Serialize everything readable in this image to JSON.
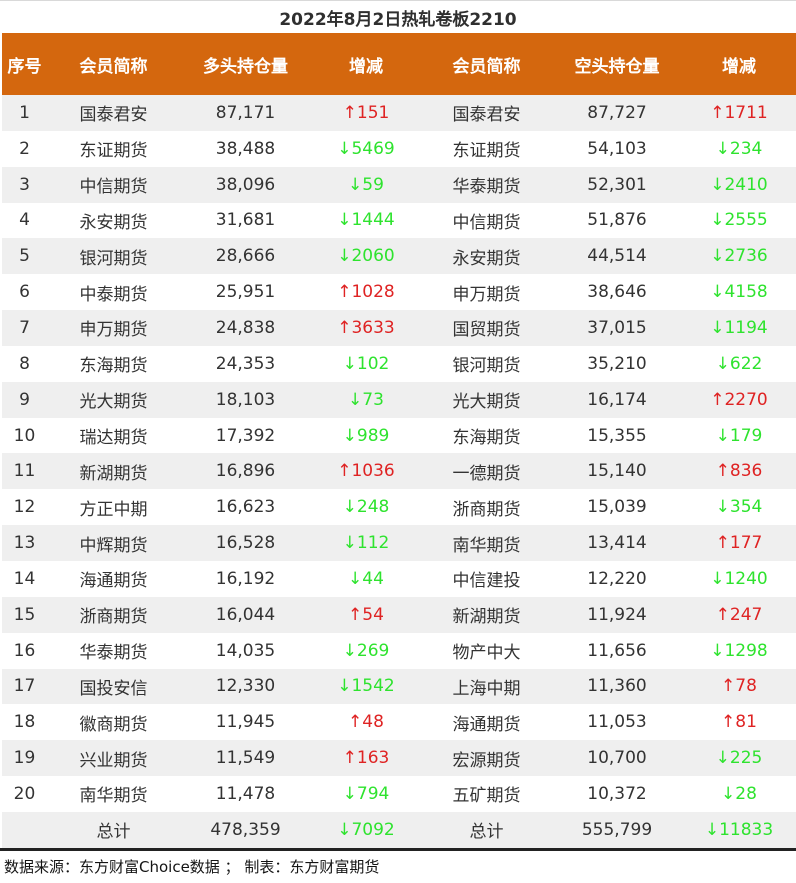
{
  "title": "2022年8月2日热轧卷板2210",
  "footer": "数据来源：东方财富Choice数据 ； 制表：东方财富期货",
  "colors": {
    "header_bg": "#D4670E",
    "alt_row_bg": "#EFEFEF",
    "up": "#DF2323",
    "down": "#2EE32E"
  },
  "arrows": {
    "up": "↑",
    "down": "↓"
  },
  "table": {
    "headers": [
      "序号",
      "会员简称",
      "多头持仓量",
      "增减",
      "会员简称",
      "空头持仓量",
      "增减"
    ],
    "rows": [
      {
        "no": "1",
        "lname": "国泰君安",
        "lpos": "87,171",
        "lchg": "151",
        "ldir": "up",
        "sname": "国泰君安",
        "spos": "87,727",
        "schg": "1711",
        "sdir": "up"
      },
      {
        "no": "2",
        "lname": "东证期货",
        "lpos": "38,488",
        "lchg": "5469",
        "ldir": "down",
        "sname": "东证期货",
        "spos": "54,103",
        "schg": "234",
        "sdir": "down"
      },
      {
        "no": "3",
        "lname": "中信期货",
        "lpos": "38,096",
        "lchg": "59",
        "ldir": "down",
        "sname": "华泰期货",
        "spos": "52,301",
        "schg": "2410",
        "sdir": "down"
      },
      {
        "no": "4",
        "lname": "永安期货",
        "lpos": "31,681",
        "lchg": "1444",
        "ldir": "down",
        "sname": "中信期货",
        "spos": "51,876",
        "schg": "2555",
        "sdir": "down"
      },
      {
        "no": "5",
        "lname": "银河期货",
        "lpos": "28,666",
        "lchg": "2060",
        "ldir": "down",
        "sname": "永安期货",
        "spos": "44,514",
        "schg": "2736",
        "sdir": "down"
      },
      {
        "no": "6",
        "lname": "中泰期货",
        "lpos": "25,951",
        "lchg": "1028",
        "ldir": "up",
        "sname": "申万期货",
        "spos": "38,646",
        "schg": "4158",
        "sdir": "down"
      },
      {
        "no": "7",
        "lname": "申万期货",
        "lpos": "24,838",
        "lchg": "3633",
        "ldir": "up",
        "sname": "国贸期货",
        "spos": "37,015",
        "schg": "1194",
        "sdir": "down"
      },
      {
        "no": "8",
        "lname": "东海期货",
        "lpos": "24,353",
        "lchg": "102",
        "ldir": "down",
        "sname": "银河期货",
        "spos": "35,210",
        "schg": "622",
        "sdir": "down"
      },
      {
        "no": "9",
        "lname": "光大期货",
        "lpos": "18,103",
        "lchg": "73",
        "ldir": "down",
        "sname": "光大期货",
        "spos": "16,174",
        "schg": "2270",
        "sdir": "up"
      },
      {
        "no": "10",
        "lname": "瑞达期货",
        "lpos": "17,392",
        "lchg": "989",
        "ldir": "down",
        "sname": "东海期货",
        "spos": "15,355",
        "schg": "179",
        "sdir": "down"
      },
      {
        "no": "11",
        "lname": "新湖期货",
        "lpos": "16,896",
        "lchg": "1036",
        "ldir": "up",
        "sname": "一德期货",
        "spos": "15,140",
        "schg": "836",
        "sdir": "up"
      },
      {
        "no": "12",
        "lname": "方正中期",
        "lpos": "16,623",
        "lchg": "248",
        "ldir": "down",
        "sname": "浙商期货",
        "spos": "15,039",
        "schg": "354",
        "sdir": "down"
      },
      {
        "no": "13",
        "lname": "中辉期货",
        "lpos": "16,528",
        "lchg": "112",
        "ldir": "down",
        "sname": "南华期货",
        "spos": "13,414",
        "schg": "177",
        "sdir": "up"
      },
      {
        "no": "14",
        "lname": "海通期货",
        "lpos": "16,192",
        "lchg": "44",
        "ldir": "down",
        "sname": "中信建投",
        "spos": "12,220",
        "schg": "1240",
        "sdir": "down"
      },
      {
        "no": "15",
        "lname": "浙商期货",
        "lpos": "16,044",
        "lchg": "54",
        "ldir": "up",
        "sname": "新湖期货",
        "spos": "11,924",
        "schg": "247",
        "sdir": "up"
      },
      {
        "no": "16",
        "lname": "华泰期货",
        "lpos": "14,035",
        "lchg": "269",
        "ldir": "down",
        "sname": "物产中大",
        "spos": "11,656",
        "schg": "1298",
        "sdir": "down"
      },
      {
        "no": "17",
        "lname": "国投安信",
        "lpos": "12,330",
        "lchg": "1542",
        "ldir": "down",
        "sname": "上海中期",
        "spos": "11,360",
        "schg": "78",
        "sdir": "up"
      },
      {
        "no": "18",
        "lname": "徽商期货",
        "lpos": "11,945",
        "lchg": "48",
        "ldir": "up",
        "sname": "海通期货",
        "spos": "11,053",
        "schg": "81",
        "sdir": "up"
      },
      {
        "no": "19",
        "lname": "兴业期货",
        "lpos": "11,549",
        "lchg": "163",
        "ldir": "up",
        "sname": "宏源期货",
        "spos": "10,700",
        "schg": "225",
        "sdir": "down"
      },
      {
        "no": "20",
        "lname": "南华期货",
        "lpos": "11,478",
        "lchg": "794",
        "ldir": "down",
        "sname": "五矿期货",
        "spos": "10,372",
        "schg": "28",
        "sdir": "down"
      }
    ],
    "total": {
      "label": "总计",
      "lpos": "478,359",
      "lchg": "7092",
      "ldir": "down",
      "spos": "555,799",
      "schg": "11833",
      "sdir": "down"
    }
  },
  "chart_data": {
    "type": "table",
    "title": "2022年8月2日热轧卷板2210",
    "columns": [
      "序号",
      "会员简称(多头)",
      "多头持仓量",
      "多头增减",
      "会员简称(空头)",
      "空头持仓量",
      "空头增减"
    ],
    "rows": [
      [
        1,
        "国泰君安",
        87171,
        151,
        "国泰君安",
        87727,
        1711
      ],
      [
        2,
        "东证期货",
        38488,
        -5469,
        "东证期货",
        54103,
        -234
      ],
      [
        3,
        "中信期货",
        38096,
        -59,
        "华泰期货",
        52301,
        -2410
      ],
      [
        4,
        "永安期货",
        31681,
        -1444,
        "中信期货",
        51876,
        -2555
      ],
      [
        5,
        "银河期货",
        28666,
        -2060,
        "永安期货",
        44514,
        -2736
      ],
      [
        6,
        "中泰期货",
        25951,
        1028,
        "申万期货",
        38646,
        -4158
      ],
      [
        7,
        "申万期货",
        24838,
        3633,
        "国贸期货",
        37015,
        -1194
      ],
      [
        8,
        "东海期货",
        24353,
        -102,
        "银河期货",
        35210,
        -622
      ],
      [
        9,
        "光大期货",
        18103,
        -73,
        "光大期货",
        16174,
        2270
      ],
      [
        10,
        "瑞达期货",
        17392,
        -989,
        "东海期货",
        15355,
        -179
      ],
      [
        11,
        "新湖期货",
        16896,
        1036,
        "一德期货",
        15140,
        836
      ],
      [
        12,
        "方正中期",
        16623,
        -248,
        "浙商期货",
        15039,
        -354
      ],
      [
        13,
        "中辉期货",
        16528,
        -112,
        "南华期货",
        13414,
        177
      ],
      [
        14,
        "海通期货",
        16192,
        -44,
        "中信建投",
        12220,
        -1240
      ],
      [
        15,
        "浙商期货",
        16044,
        54,
        "新湖期货",
        11924,
        247
      ],
      [
        16,
        "华泰期货",
        14035,
        -269,
        "物产中大",
        11656,
        -1298
      ],
      [
        17,
        "国投安信",
        12330,
        -1542,
        "上海中期",
        11360,
        78
      ],
      [
        18,
        "徽商期货",
        11945,
        48,
        "海通期货",
        11053,
        81
      ],
      [
        19,
        "兴业期货",
        11549,
        163,
        "宏源期货",
        10700,
        -225
      ],
      [
        20,
        "南华期货",
        11478,
        -794,
        "五矿期货",
        10372,
        -28
      ]
    ],
    "totals": {
      "label": "总计",
      "long_total": 478359,
      "long_change": -7092,
      "short_total": 555799,
      "short_change": -11833
    }
  }
}
